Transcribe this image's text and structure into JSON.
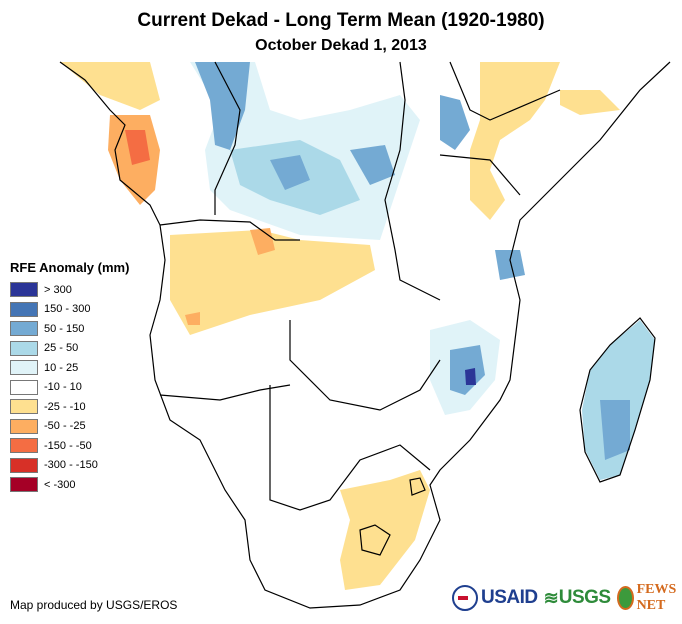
{
  "header": {
    "title": "Current Dekad - Long Term Mean (1920-1980)",
    "subtitle": "October Dekad 1, 2013"
  },
  "legend": {
    "title": "RFE Anomaly (mm)",
    "items": [
      {
        "label": "> 300",
        "color": "#2b3597"
      },
      {
        "label": "150 - 300",
        "color": "#4475b5"
      },
      {
        "label": "50 - 150",
        "color": "#74aad3"
      },
      {
        "label": "25 - 50",
        "color": "#abd9e8"
      },
      {
        "label": "10 - 25",
        "color": "#e0f3f8"
      },
      {
        "label": "-10 - 10",
        "color": "#ffffff"
      },
      {
        "label": "-25 - -10",
        "color": "#fee090"
      },
      {
        "label": "-50 - -25",
        "color": "#fdae61"
      },
      {
        "label": "-150 - -50",
        "color": "#f46d43"
      },
      {
        "label": "-300 - -150",
        "color": "#d73027"
      },
      {
        "label": "< -300",
        "color": "#a50026"
      }
    ]
  },
  "footer": {
    "credit": "Map produced by USGS/EROS",
    "logos": {
      "usaid": "USAID",
      "usgs": "USGS",
      "fewsnet": "FEWS NET"
    }
  },
  "map": {
    "region": "Southern and Central Africa",
    "colors": {
      "border": "#000000",
      "land": "#ffffff"
    }
  }
}
